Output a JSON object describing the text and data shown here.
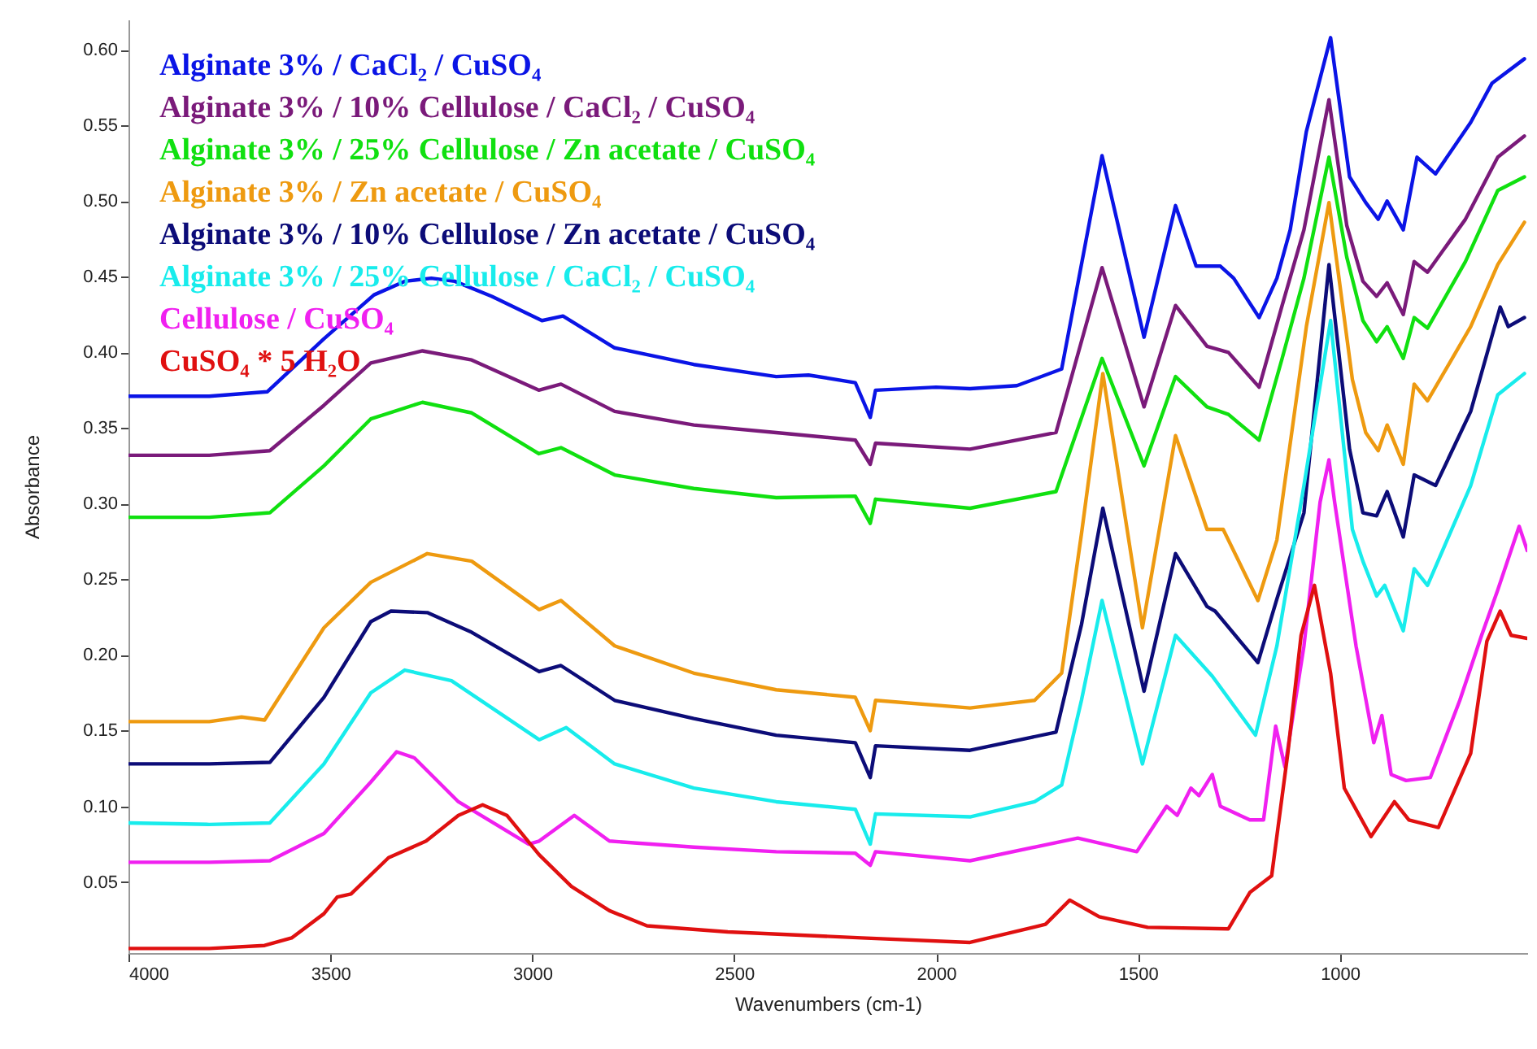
{
  "chart_data": {
    "type": "line",
    "xlabel": "Wavenumbers (cm-1)",
    "ylabel": "Absorbance",
    "xlim": [
      4000,
      536
    ],
    "xticks": [
      4000,
      3500,
      3000,
      2500,
      2000,
      1500,
      1000
    ],
    "ylim": [
      0.003,
      0.62
    ],
    "yticks": [
      {
        "value": 0.05,
        "label": "0.05"
      },
      {
        "value": 0.1,
        "label": "0.10"
      },
      {
        "value": 0.15,
        "label": "0.15"
      },
      {
        "value": 0.2,
        "label": "0.20"
      },
      {
        "value": 0.25,
        "label": "0.25"
      },
      {
        "value": 0.3,
        "label": "0.30"
      },
      {
        "value": 0.35,
        "label": "0.35"
      },
      {
        "value": 0.4,
        "label": "0.40"
      },
      {
        "value": 0.45,
        "label": "0.45"
      },
      {
        "value": 0.5,
        "label": "0.50"
      },
      {
        "value": 0.55,
        "label": "0.55"
      },
      {
        "value": 0.6,
        "label": "0.60"
      }
    ],
    "legend": "top left",
    "series": [
      {
        "name": "Alginate 3% / CaCl₂ / CuSO₄",
        "color": "#0a14e6",
        "x": [
          4000,
          3800,
          3656,
          3516,
          3392,
          3316,
          3250,
          3192,
          3100,
          2976,
          2924,
          2796,
          2600,
          2396,
          2316,
          2200,
          2163,
          2150,
          2000,
          1916,
          1800,
          1689,
          1589,
          1485,
          1407,
          1356,
          1296,
          1263,
          1200,
          1156,
          1123,
          1083,
          1023,
          976,
          936,
          905,
          883,
          843,
          809,
          763,
          676,
          623,
          543
        ],
        "values": [
          0.371,
          0.371,
          0.374,
          0.409,
          0.438,
          0.447,
          0.449,
          0.447,
          0.437,
          0.421,
          0.424,
          0.403,
          0.392,
          0.384,
          0.385,
          0.38,
          0.357,
          0.375,
          0.377,
          0.376,
          0.378,
          0.389,
          0.53,
          0.41,
          0.497,
          0.457,
          0.457,
          0.449,
          0.423,
          0.449,
          0.481,
          0.546,
          0.608,
          0.516,
          0.499,
          0.488,
          0.5,
          0.481,
          0.529,
          0.518,
          0.552,
          0.578,
          0.594
        ]
      },
      {
        "name": "Alginate 3% / 10% Cellulose / CaCl₂ / CuSO₄",
        "color": "#7a1a7a",
        "x": [
          4000,
          3800,
          3650,
          3516,
          3400,
          3272,
          3150,
          2984,
          2929,
          2796,
          2600,
          2396,
          2200,
          2163,
          2150,
          1916,
          1703,
          1589,
          1485,
          1407,
          1329,
          1276,
          1200,
          1143,
          1089,
          1027,
          983,
          943,
          909,
          883,
          843,
          816,
          783,
          689,
          609,
          543
        ],
        "values": [
          0.332,
          0.332,
          0.335,
          0.365,
          0.393,
          0.401,
          0.395,
          0.375,
          0.379,
          0.361,
          0.352,
          0.347,
          0.342,
          0.326,
          0.34,
          0.336,
          0.347,
          0.456,
          0.364,
          0.431,
          0.404,
          0.4,
          0.377,
          0.431,
          0.481,
          0.567,
          0.484,
          0.447,
          0.437,
          0.446,
          0.425,
          0.46,
          0.453,
          0.488,
          0.529,
          0.543
        ]
      },
      {
        "name": "Alginate 3% / 25% Cellulose / Zn acetate / CuSO₄",
        "color": "#10e010",
        "x": [
          4000,
          3800,
          3650,
          3516,
          3400,
          3272,
          3150,
          2984,
          2929,
          2796,
          2600,
          2396,
          2200,
          2163,
          2150,
          1916,
          1703,
          1589,
          1485,
          1407,
          1329,
          1276,
          1200,
          1143,
          1089,
          1027,
          983,
          943,
          909,
          883,
          843,
          816,
          783,
          689,
          609,
          543
        ],
        "values": [
          0.291,
          0.291,
          0.294,
          0.325,
          0.356,
          0.367,
          0.36,
          0.333,
          0.337,
          0.319,
          0.31,
          0.304,
          0.305,
          0.287,
          0.303,
          0.297,
          0.308,
          0.396,
          0.325,
          0.384,
          0.364,
          0.359,
          0.342,
          0.396,
          0.449,
          0.529,
          0.463,
          0.421,
          0.407,
          0.417,
          0.396,
          0.423,
          0.416,
          0.46,
          0.507,
          0.516
        ]
      },
      {
        "name": "Alginate 3% / Zn acetate / CuSO₄",
        "color": "#ee9a10",
        "x": [
          4000,
          3800,
          3720,
          3663,
          3516,
          3400,
          3260,
          3150,
          2983,
          2929,
          2796,
          2600,
          2396,
          2200,
          2163,
          2150,
          1916,
          1756,
          1689,
          1640,
          1587,
          1489,
          1407,
          1329,
          1289,
          1203,
          1156,
          1083,
          1027,
          969,
          936,
          905,
          883,
          843,
          816,
          783,
          676,
          609,
          543
        ],
        "values": [
          0.156,
          0.156,
          0.159,
          0.157,
          0.218,
          0.248,
          0.267,
          0.262,
          0.23,
          0.236,
          0.206,
          0.188,
          0.177,
          0.172,
          0.15,
          0.17,
          0.165,
          0.17,
          0.188,
          0.28,
          0.386,
          0.218,
          0.345,
          0.283,
          0.283,
          0.236,
          0.276,
          0.417,
          0.499,
          0.382,
          0.347,
          0.335,
          0.352,
          0.326,
          0.379,
          0.368,
          0.417,
          0.458,
          0.486
        ]
      },
      {
        "name": "Alginate 3% / 10% Cellulose / Zn acetate / CuSO₄",
        "color": "#0c0c78",
        "x": [
          4000,
          3800,
          3650,
          3516,
          3400,
          3350,
          3260,
          3150,
          2983,
          2929,
          2796,
          2600,
          2396,
          2200,
          2163,
          2150,
          1916,
          1703,
          1640,
          1587,
          1485,
          1407,
          1329,
          1309,
          1203,
          1156,
          1089,
          1027,
          976,
          943,
          909,
          883,
          843,
          816,
          763,
          676,
          603,
          583,
          543
        ],
        "values": [
          0.128,
          0.128,
          0.129,
          0.172,
          0.222,
          0.229,
          0.228,
          0.215,
          0.189,
          0.193,
          0.17,
          0.158,
          0.147,
          0.142,
          0.119,
          0.14,
          0.137,
          0.149,
          0.22,
          0.297,
          0.176,
          0.267,
          0.232,
          0.229,
          0.195,
          0.237,
          0.294,
          0.458,
          0.336,
          0.294,
          0.292,
          0.308,
          0.278,
          0.319,
          0.312,
          0.361,
          0.43,
          0.417,
          0.423
        ]
      },
      {
        "name": "Alginate 3% / 25% Cellulose / CaCl₂ / CuSO₄",
        "color": "#18ecec",
        "x": [
          4000,
          3800,
          3650,
          3516,
          3400,
          3316,
          3200,
          2983,
          2916,
          2796,
          2600,
          2396,
          2200,
          2163,
          2150,
          1916,
          1756,
          1689,
          1640,
          1589,
          1489,
          1407,
          1316,
          1209,
          1156,
          1089,
          1023,
          969,
          943,
          909,
          889,
          843,
          816,
          783,
          676,
          609,
          543
        ],
        "values": [
          0.089,
          0.088,
          0.089,
          0.128,
          0.175,
          0.19,
          0.183,
          0.144,
          0.152,
          0.128,
          0.112,
          0.103,
          0.098,
          0.075,
          0.095,
          0.093,
          0.103,
          0.114,
          0.17,
          0.236,
          0.128,
          0.213,
          0.186,
          0.147,
          0.206,
          0.312,
          0.421,
          0.283,
          0.262,
          0.239,
          0.246,
          0.216,
          0.257,
          0.246,
          0.312,
          0.372,
          0.386
        ]
      },
      {
        "name": "Cellulose / CuSO₄",
        "color": "#f020f0",
        "x": [
          4000,
          3800,
          3650,
          3516,
          3400,
          3336,
          3292,
          3183,
          3009,
          2983,
          2896,
          2809,
          2600,
          2396,
          2200,
          2163,
          2150,
          1916,
          1649,
          1503,
          1429,
          1403,
          1369,
          1349,
          1316,
          1296,
          1223,
          1189,
          1159,
          1136,
          1089,
          1049,
          1027,
          1013,
          960,
          916,
          896,
          873,
          836,
          776,
          703,
          649,
          609,
          556,
          536
        ],
        "values": [
          0.063,
          0.063,
          0.064,
          0.082,
          0.116,
          0.136,
          0.132,
          0.103,
          0.075,
          0.077,
          0.094,
          0.077,
          0.073,
          0.07,
          0.069,
          0.061,
          0.07,
          0.064,
          0.079,
          0.07,
          0.1,
          0.094,
          0.112,
          0.107,
          0.121,
          0.1,
          0.091,
          0.091,
          0.153,
          0.126,
          0.206,
          0.301,
          0.329,
          0.301,
          0.206,
          0.142,
          0.16,
          0.121,
          0.117,
          0.119,
          0.17,
          0.213,
          0.243,
          0.285,
          0.269
        ]
      },
      {
        "name": "CuSO₄ * 5 H₂O",
        "color": "#e01010",
        "x": [
          4000,
          3800,
          3663,
          3596,
          3516,
          3483,
          3449,
          3356,
          3263,
          3183,
          3123,
          3063,
          2983,
          2903,
          2809,
          2716,
          2516,
          2184,
          1916,
          1729,
          1669,
          1596,
          1476,
          1276,
          1223,
          1169,
          1129,
          1096,
          1063,
          1023,
          989,
          923,
          865,
          829,
          756,
          676,
          636,
          603,
          576,
          536
        ],
        "values": [
          0.006,
          0.006,
          0.008,
          0.013,
          0.029,
          0.04,
          0.042,
          0.066,
          0.077,
          0.094,
          0.101,
          0.094,
          0.068,
          0.047,
          0.031,
          0.021,
          0.017,
          0.013,
          0.01,
          0.022,
          0.038,
          0.027,
          0.02,
          0.019,
          0.043,
          0.054,
          0.135,
          0.213,
          0.246,
          0.188,
          0.112,
          0.08,
          0.103,
          0.091,
          0.086,
          0.135,
          0.209,
          0.229,
          0.213,
          0.211
        ]
      }
    ]
  }
}
